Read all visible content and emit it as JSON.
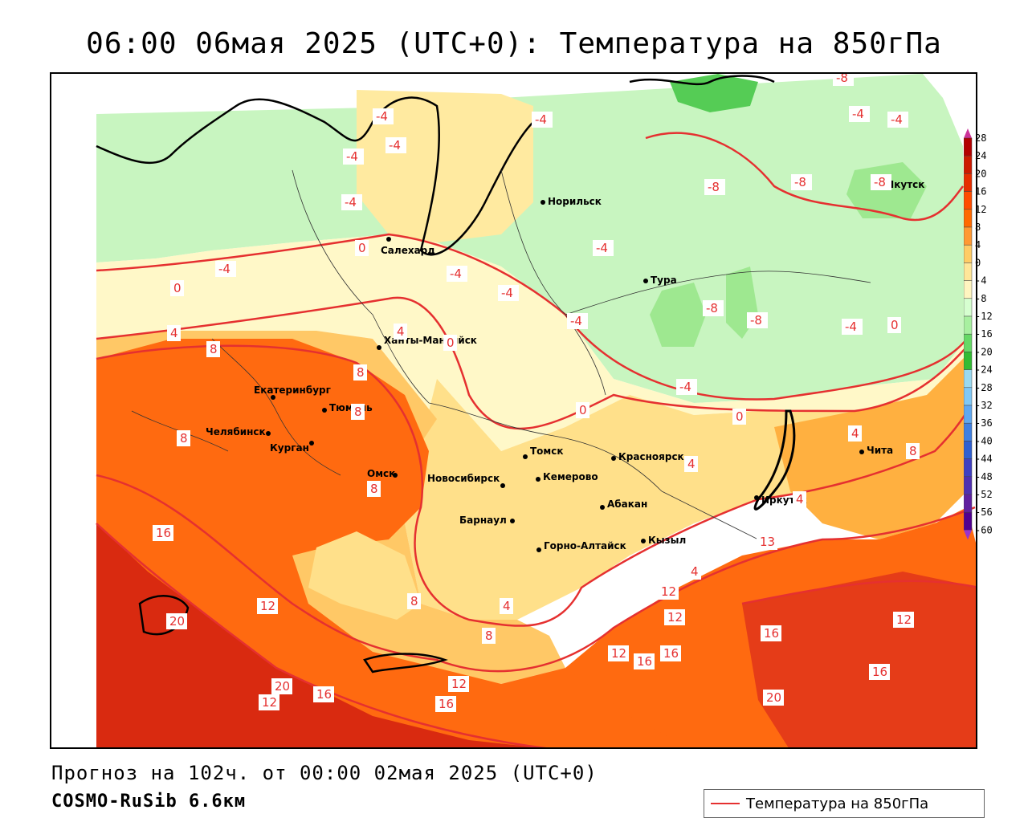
{
  "title": "06:00 06мая 2025 (UTC+0): Температура на 850гПа",
  "footer": {
    "forecast": "Прогноз на 102ч. от 00:00 02мая 2025 (UTC+0)",
    "model": "COSMO-RuSib 6.6км"
  },
  "legend": {
    "label": "Температура на 850гПа",
    "line_color": "#e53030"
  },
  "colorbar": {
    "levels": [
      "28",
      "24",
      "20",
      "16",
      "12",
      "8",
      "4",
      "0",
      "-4",
      "-8",
      "-12",
      "-16",
      "-20",
      "-24",
      "-28",
      "-32",
      "-36",
      "-40",
      "-44",
      "-48",
      "-52",
      "-56",
      "-60"
    ],
    "colors": [
      "#b30000",
      "#cc1a00",
      "#e62e00",
      "#ff4d00",
      "#ff6a00",
      "#ff9933",
      "#ffcc66",
      "#ffe699",
      "#fff5c0",
      "#d6ffd0",
      "#a8f0a0",
      "#66d966",
      "#33bb33",
      "#9ad9f0",
      "#80c8f5",
      "#60a8f0",
      "#4080e0",
      "#3060d0",
      "#4040c0",
      "#5030b0",
      "#6020a0",
      "#500090"
    ]
  },
  "cities": [
    {
      "name": "Салехард"
    },
    {
      "name": "Норильск"
    },
    {
      "name": "Якутск"
    },
    {
      "name": "Тура"
    },
    {
      "name": "Ханты-Мансийск"
    },
    {
      "name": "Екатеринбург"
    },
    {
      "name": "Тюмень"
    },
    {
      "name": "Челябинск"
    },
    {
      "name": "Курган"
    },
    {
      "name": "Омск"
    },
    {
      "name": "Новосибирск"
    },
    {
      "name": "Томск"
    },
    {
      "name": "Кемерово"
    },
    {
      "name": "Красноярск"
    },
    {
      "name": "Абакан"
    },
    {
      "name": "Барнаул"
    },
    {
      "name": "Горно-Алтайск"
    },
    {
      "name": "Кызыл"
    },
    {
      "name": "Иркутск"
    },
    {
      "name": "Чита"
    }
  ],
  "isotherm_labels": [
    "-8",
    "-4",
    "-4",
    "-4",
    "-4",
    "-4",
    "-4",
    "-8",
    "-8",
    "-8",
    "-8",
    "-8",
    "-4",
    "-4",
    "-4",
    "-4",
    "-4",
    "-4",
    "-4",
    "-4",
    "0",
    "0",
    "0",
    "0",
    "0",
    "0",
    "4",
    "4",
    "4",
    "4",
    "4",
    "4",
    "4",
    "8",
    "8",
    "8",
    "8",
    "8",
    "8",
    "8",
    "8",
    "12",
    "12",
    "12",
    "12",
    "12",
    "12",
    "12",
    "13",
    "16",
    "16",
    "16",
    "16",
    "16",
    "16",
    "16",
    "20",
    "20",
    "20"
  ]
}
